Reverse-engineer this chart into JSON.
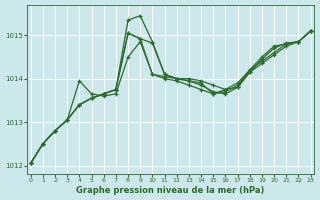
{
  "title": "Graphe pression niveau de la mer (hPa)",
  "bg_color": "#cce8ed",
  "grid_color": "#ffffff",
  "line_color": "#2d6a2d",
  "ylim": [
    1011.8,
    1015.7
  ],
  "yticks": [
    1012,
    1013,
    1014,
    1015
  ],
  "xlim": [
    -0.3,
    23.3
  ],
  "xticks": [
    0,
    1,
    2,
    3,
    4,
    5,
    6,
    7,
    8,
    9,
    10,
    11,
    12,
    13,
    14,
    15,
    16,
    17,
    18,
    19,
    20,
    21,
    22,
    23
  ],
  "series": [
    [
      1012.05,
      1012.5,
      1012.8,
      1013.05,
      1013.95,
      1013.65,
      1013.6,
      1013.65,
      1014.5,
      1014.85,
      1014.1,
      1014.05,
      1014.0,
      1013.95,
      1013.9,
      1013.65,
      1013.75,
      1013.9,
      1014.2,
      1014.5,
      1014.75,
      1014.8,
      1014.85,
      1015.1
    ],
    [
      1012.05,
      1012.5,
      1012.8,
      1013.05,
      1013.4,
      1013.55,
      1013.65,
      1013.75,
      1015.05,
      1014.92,
      1014.82,
      1014.1,
      1014.0,
      1014.0,
      1013.95,
      1013.85,
      1013.75,
      1013.8,
      1014.15,
      1014.35,
      1014.55,
      1014.75,
      1014.85,
      1015.1
    ],
    [
      1012.05,
      1012.5,
      1012.8,
      1013.05,
      1013.4,
      1013.55,
      1013.65,
      1013.75,
      1015.35,
      1015.45,
      1014.85,
      1014.1,
      1014.0,
      1013.95,
      1013.85,
      1013.7,
      1013.65,
      1013.8,
      1014.15,
      1014.45,
      1014.7,
      1014.82,
      1014.85,
      1015.1
    ],
    [
      1012.05,
      1012.5,
      1012.8,
      1013.05,
      1013.4,
      1013.55,
      1013.65,
      1013.75,
      1015.05,
      1014.92,
      1014.1,
      1014.0,
      1013.95,
      1013.85,
      1013.75,
      1013.65,
      1013.7,
      1013.85,
      1014.2,
      1014.4,
      1014.6,
      1014.8,
      1014.85,
      1015.1
    ]
  ],
  "figsize": [
    3.2,
    2.0
  ],
  "dpi": 100,
  "title_fontsize": 6,
  "tick_fontsize": 5,
  "linewidth": 0.9,
  "markersize": 3.5
}
